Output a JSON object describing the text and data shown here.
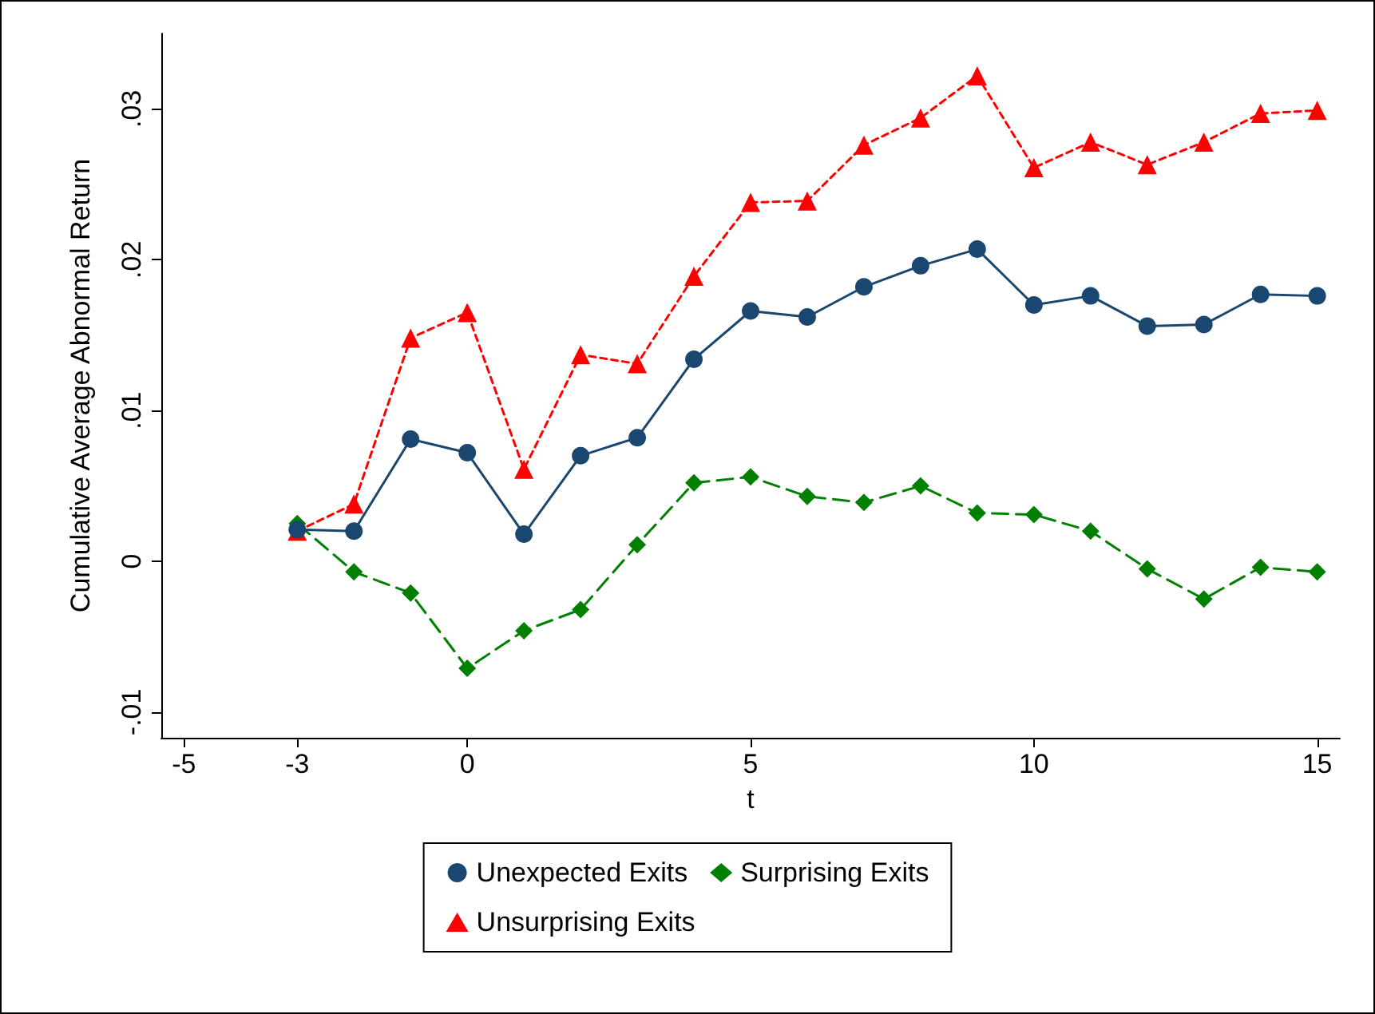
{
  "chart_data": {
    "type": "line",
    "xlabel": "t",
    "ylabel": "Cumulative Average Abnormal Return",
    "x": [
      -3,
      -2,
      -1,
      0,
      1,
      2,
      3,
      4,
      5,
      6,
      7,
      8,
      9,
      10,
      11,
      12,
      13,
      14,
      15
    ],
    "series": [
      {
        "name": "Unexpected Exits",
        "color": "#1a476f",
        "marker": "circle",
        "line_style": "solid",
        "values": [
          0.0021,
          0.002,
          0.0081,
          0.0072,
          0.0018,
          0.007,
          0.0082,
          0.0134,
          0.0166,
          0.0162,
          0.0182,
          0.0196,
          0.0207,
          0.017,
          0.0176,
          0.0156,
          0.0157,
          0.0177,
          0.0176
        ]
      },
      {
        "name": "Surprising Exits",
        "color": "#008000",
        "marker": "diamond",
        "line_style": "dashed",
        "values": [
          0.0025,
          -0.0007,
          -0.0021,
          -0.0071,
          -0.0046,
          -0.0032,
          0.0011,
          0.0052,
          0.0056,
          0.0043,
          0.0039,
          0.005,
          0.0032,
          0.0031,
          0.002,
          -0.0005,
          -0.0025,
          -0.0004,
          -0.0007
        ]
      },
      {
        "name": "Unsurprising Exits",
        "color": "#ff0000",
        "marker": "triangle",
        "line_style": "dotted",
        "values": [
          0.002,
          0.0038,
          0.0148,
          0.0165,
          0.0061,
          0.0137,
          0.0131,
          0.0189,
          0.0238,
          0.0239,
          0.0276,
          0.0294,
          0.0322,
          0.0261,
          0.0278,
          0.0263,
          0.0278,
          0.0297,
          0.0299
        ]
      }
    ],
    "xlim": [
      -5.4,
      15.4
    ],
    "xticks": [
      -5,
      -3,
      0,
      5,
      10,
      15
    ],
    "ylim": [
      -0.0117,
      0.035
    ],
    "yticks": [
      {
        "value": -0.01,
        "label": "-.01"
      },
      {
        "value": 0,
        "label": "0"
      },
      {
        "value": 0.01,
        "label": ".01"
      },
      {
        "value": 0.02,
        "label": ".02"
      },
      {
        "value": 0.03,
        "label": ".03"
      }
    ],
    "grid": false,
    "legend": "bottom"
  }
}
